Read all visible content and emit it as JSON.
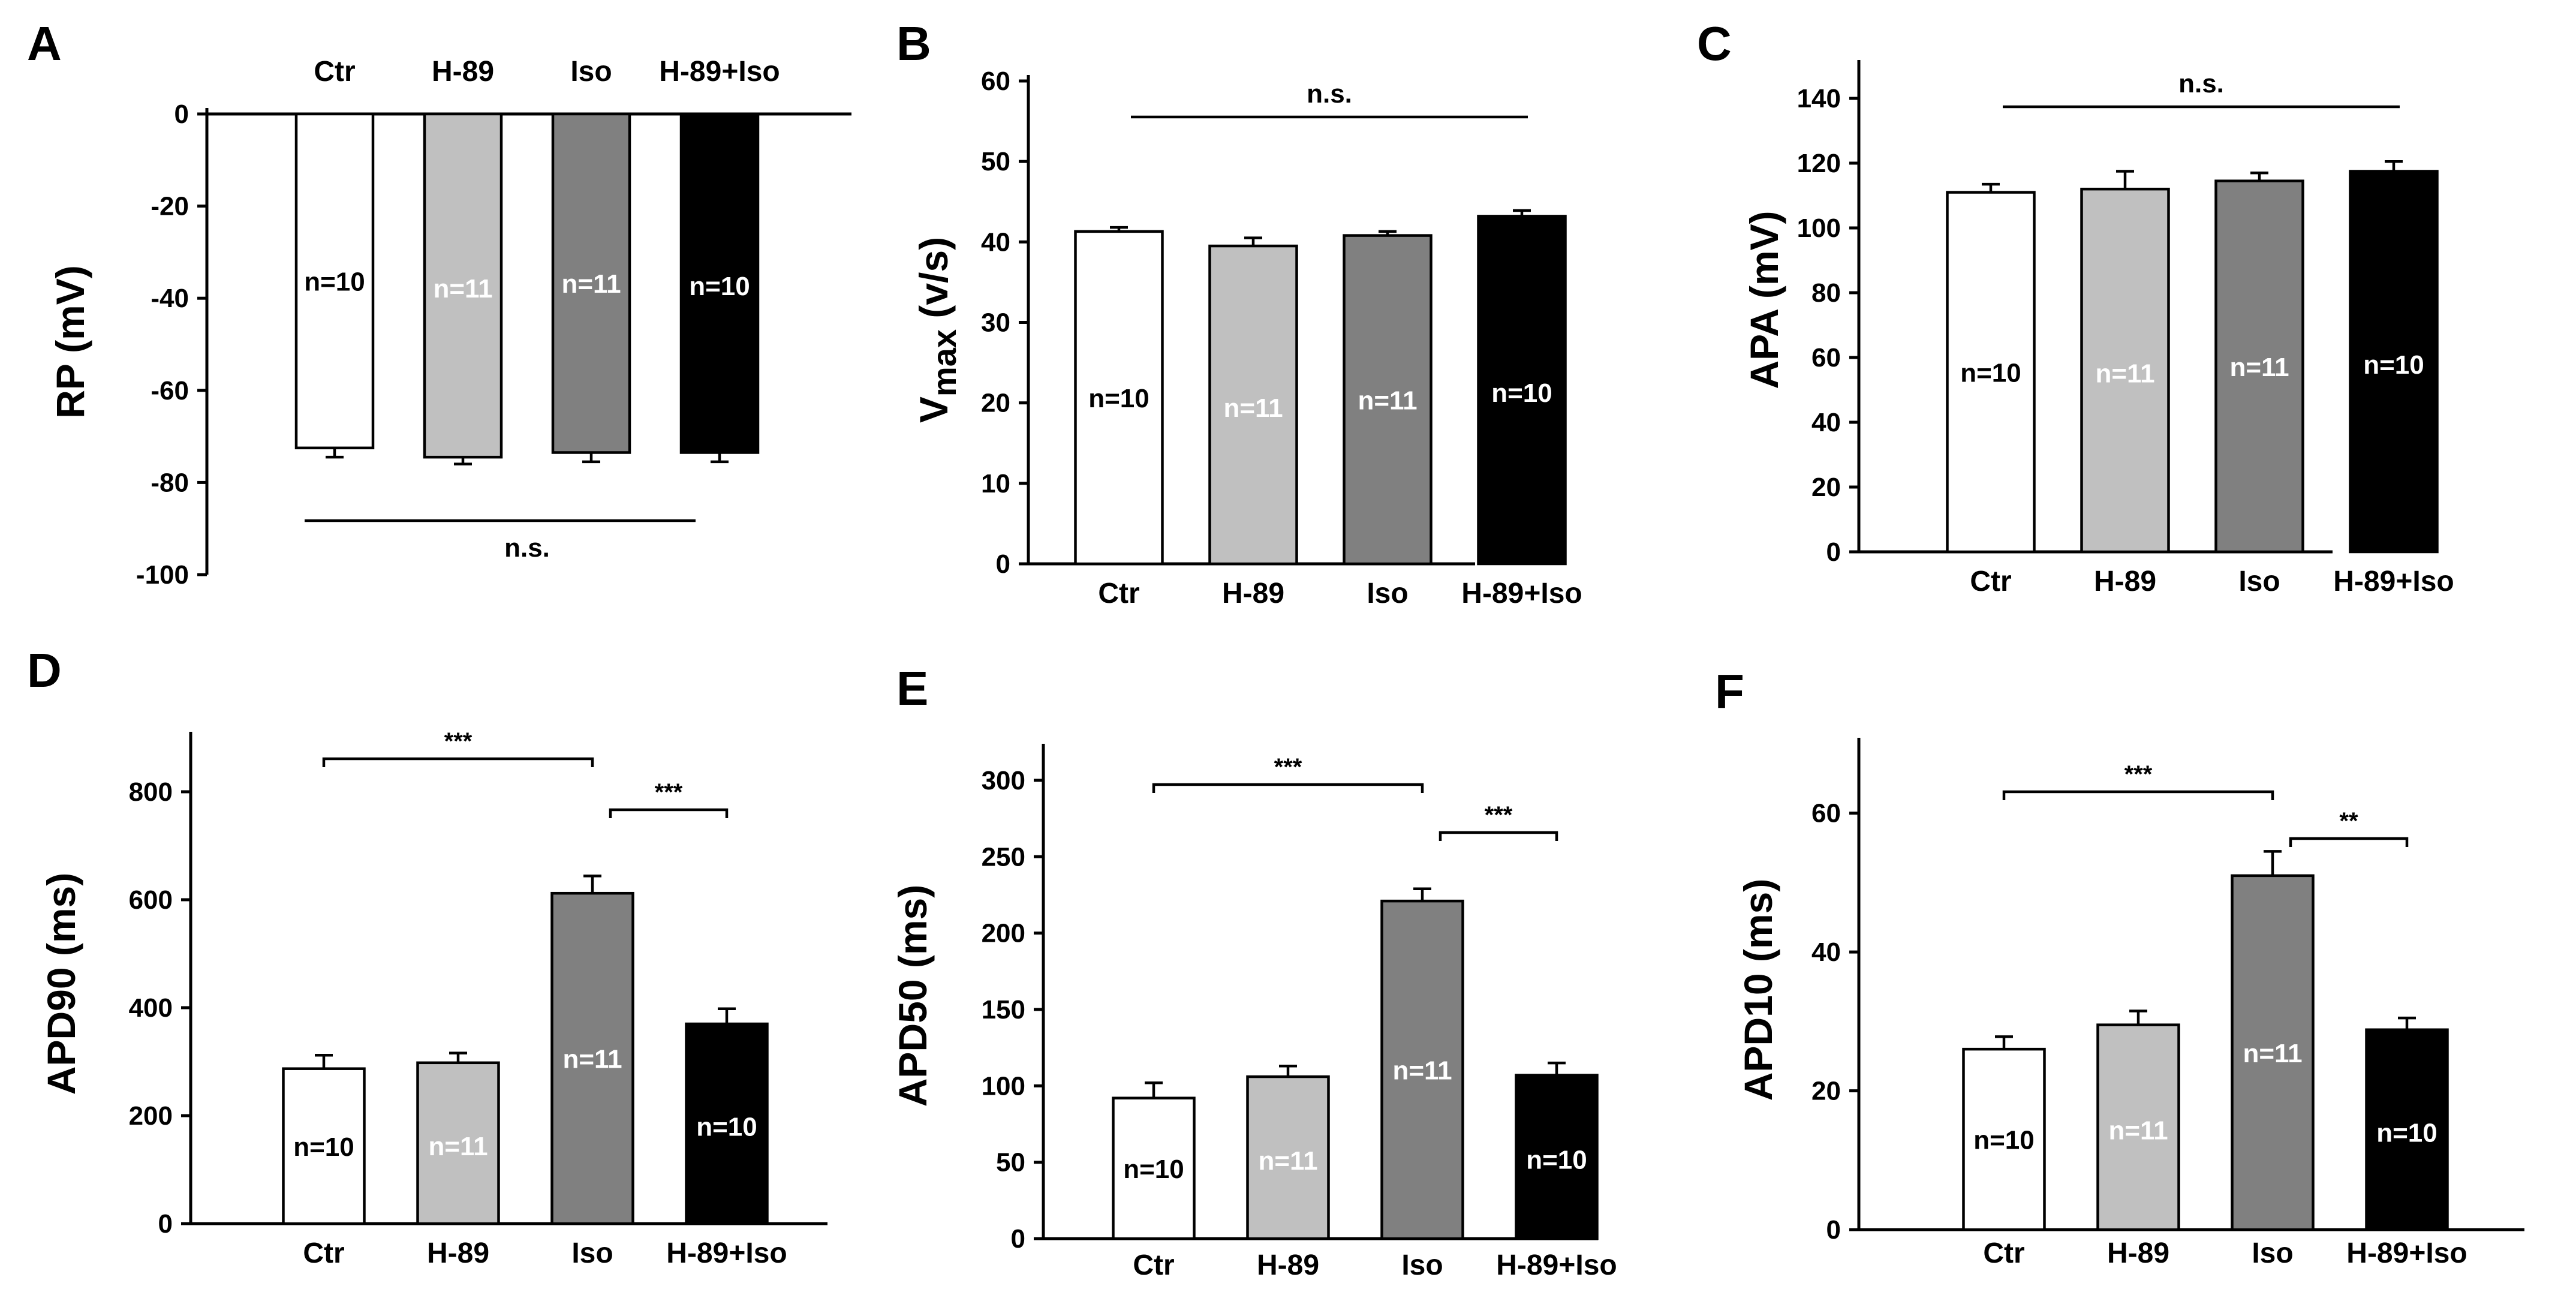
{
  "chart_data": [
    {
      "panel": "A",
      "type": "bar",
      "ylabel": "RP (mV)",
      "categories": [
        "Ctr",
        "H-89",
        "Iso",
        "H-89+Iso"
      ],
      "values": [
        -72.5,
        -74.5,
        -73.5,
        -73.5
      ],
      "errors": [
        2,
        1.5,
        2,
        2
      ],
      "n_labels": [
        "n=10",
        "n=11",
        "n=11",
        "n=10"
      ],
      "ylim": [
        -100,
        0
      ],
      "yticks": [
        0,
        -20,
        -40,
        -60,
        -80,
        -100
      ],
      "category_position": "top",
      "significance": [
        {
          "from": 0,
          "to": 3,
          "label": "n.s."
        }
      ]
    },
    {
      "panel": "B",
      "type": "bar",
      "ylabel": "Vmax (v/s)",
      "categories": [
        "Ctr",
        "H-89",
        "Iso",
        "H-89+Iso"
      ],
      "values": [
        41.3,
        39.5,
        40.8,
        43.2
      ],
      "errors": [
        0.5,
        1.0,
        0.5,
        0.7
      ],
      "n_labels": [
        "n=10",
        "n=11",
        "n=11",
        "n=10"
      ],
      "ylim": [
        0,
        60
      ],
      "yticks": [
        0,
        10,
        20,
        30,
        40,
        50,
        60
      ],
      "category_position": "bottom",
      "significance": [
        {
          "from": 0,
          "to": 3,
          "label": "n.s."
        }
      ]
    },
    {
      "panel": "C",
      "type": "bar",
      "ylabel": "APA (mV)",
      "categories": [
        "Ctr",
        "H-89",
        "Iso",
        "H-89+Iso"
      ],
      "values": [
        111,
        112,
        114.5,
        117.5
      ],
      "errors": [
        2.5,
        5.5,
        2.5,
        3.0
      ],
      "n_labels": [
        "n=10",
        "n=11",
        "n=11",
        "n=10"
      ],
      "ylim": [
        0,
        150
      ],
      "yticks": [
        0,
        20,
        40,
        60,
        80,
        100,
        120,
        140
      ],
      "category_position": "bottom",
      "significance": [
        {
          "from": 0,
          "to": 3,
          "label": "n.s."
        }
      ]
    },
    {
      "panel": "D",
      "type": "bar",
      "ylabel": "APD90 (ms)",
      "categories": [
        "Ctr",
        "H-89",
        "Iso",
        "H-89+Iso"
      ],
      "values": [
        287,
        298,
        612,
        370
      ],
      "errors": [
        25,
        18,
        32,
        28
      ],
      "n_labels": [
        "n=10",
        "n=11",
        "n=11",
        "n=10"
      ],
      "ylim": [
        0,
        900
      ],
      "yticks": [
        0,
        200,
        400,
        600,
        800
      ],
      "category_position": "bottom",
      "significance": [
        {
          "from": 0,
          "to": 2,
          "label": "***"
        },
        {
          "from": 2,
          "to": 3,
          "label": "***"
        }
      ]
    },
    {
      "panel": "E",
      "type": "bar",
      "ylabel": "APD50 (ms)",
      "categories": [
        "Ctr",
        "H-89",
        "Iso",
        "H-89+Iso"
      ],
      "values": [
        92,
        106,
        221,
        107
      ],
      "errors": [
        10,
        7,
        8,
        8
      ],
      "n_labels": [
        "n=10",
        "n=11",
        "n=11",
        "n=10"
      ],
      "ylim": [
        0,
        320
      ],
      "yticks": [
        0,
        50,
        100,
        150,
        200,
        250,
        300
      ],
      "category_position": "bottom",
      "significance": [
        {
          "from": 0,
          "to": 2,
          "label": "***"
        },
        {
          "from": 2,
          "to": 3,
          "label": "***"
        }
      ]
    },
    {
      "panel": "F",
      "type": "bar",
      "ylabel": "APD10 (ms)",
      "categories": [
        "Ctr",
        "H-89",
        "Iso",
        "H-89+Iso"
      ],
      "values": [
        26,
        29.5,
        51,
        28.8
      ],
      "errors": [
        1.8,
        2.0,
        3.5,
        1.7
      ],
      "n_labels": [
        "n=10",
        "n=11",
        "n=11",
        "n=10"
      ],
      "ylim": [
        0,
        70
      ],
      "yticks": [
        0,
        20,
        40,
        60
      ],
      "category_position": "bottom",
      "significance": [
        {
          "from": 0,
          "to": 2,
          "label": "***"
        },
        {
          "from": 2,
          "to": 3,
          "label": "**"
        }
      ]
    }
  ],
  "bar_colors": [
    "#ffffff",
    "#c0c0c0",
    "#808080",
    "#000000"
  ],
  "n_label_colors": [
    "#000000",
    "#ffffff",
    "#ffffff",
    "#ffffff"
  ]
}
